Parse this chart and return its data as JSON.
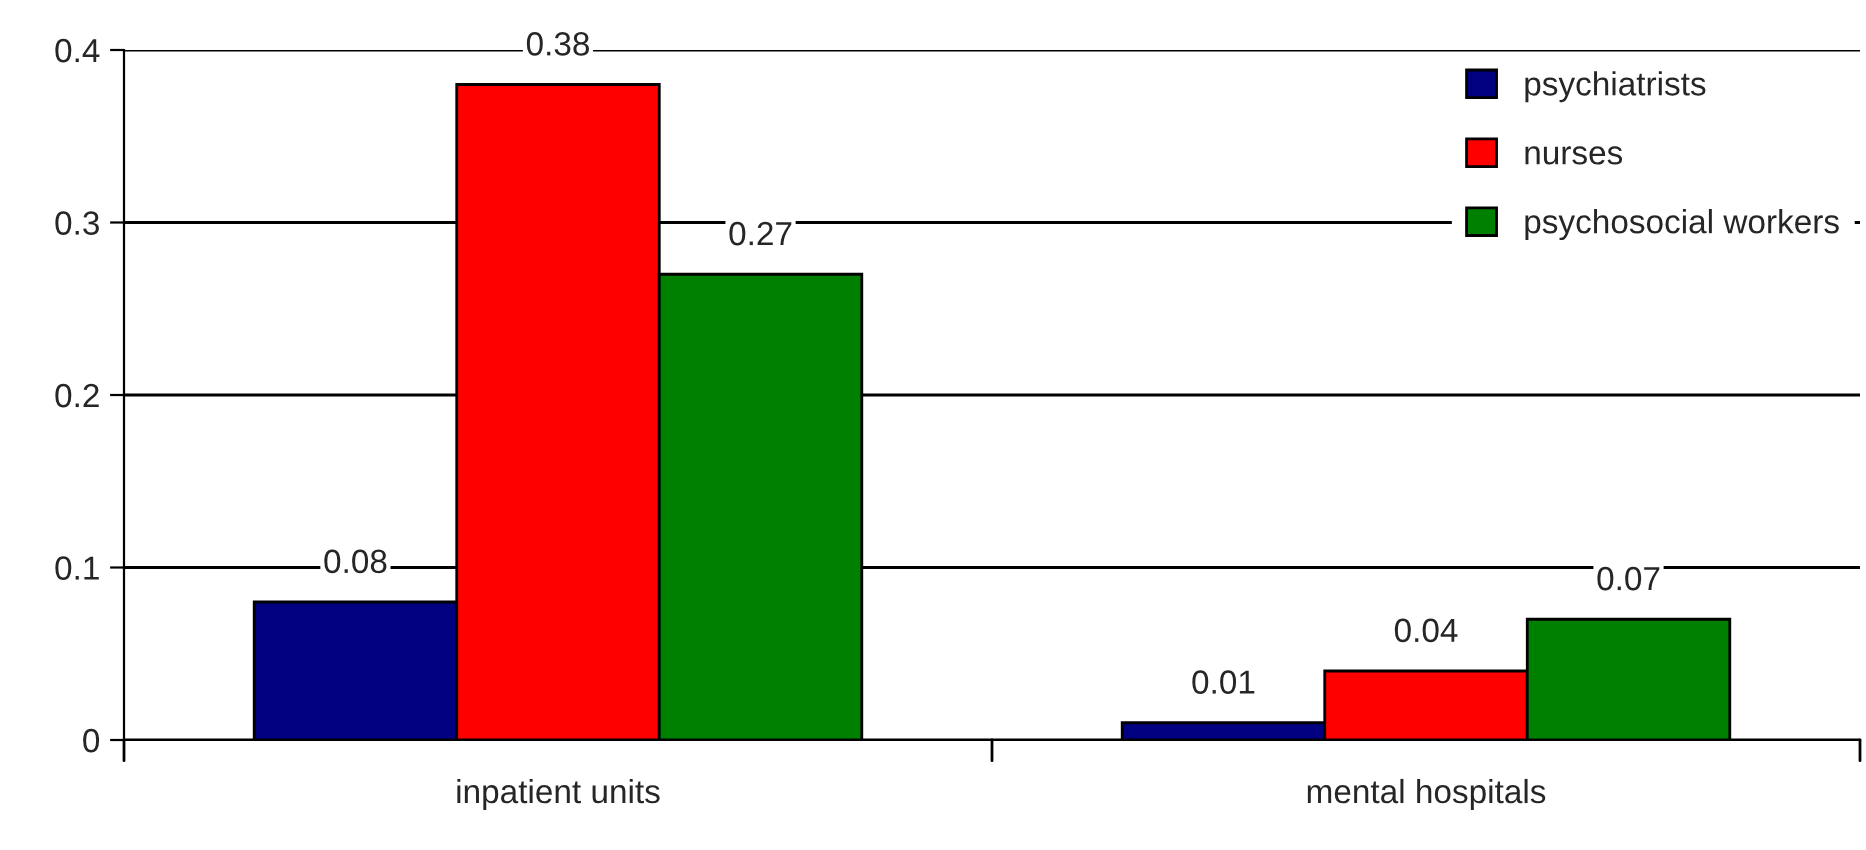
{
  "chart_data": {
    "type": "bar",
    "categories": [
      "inpatient units",
      "mental hospitals"
    ],
    "series": [
      {
        "name": "psychiatrists",
        "color": "#000080",
        "values": [
          0.08,
          0.01
        ]
      },
      {
        "name": "nurses",
        "color": "#ff0000",
        "values": [
          0.38,
          0.04
        ]
      },
      {
        "name": "psychosocial workers",
        "color": "#008000",
        "values": [
          0.27,
          0.07
        ]
      }
    ],
    "ylim": [
      0,
      0.4
    ],
    "yticks": [
      {
        "value": 0,
        "label": "0"
      },
      0.1,
      0.2,
      0.3,
      0.4
    ],
    "grid": "y",
    "legend": "top right",
    "data_labels": true
  }
}
